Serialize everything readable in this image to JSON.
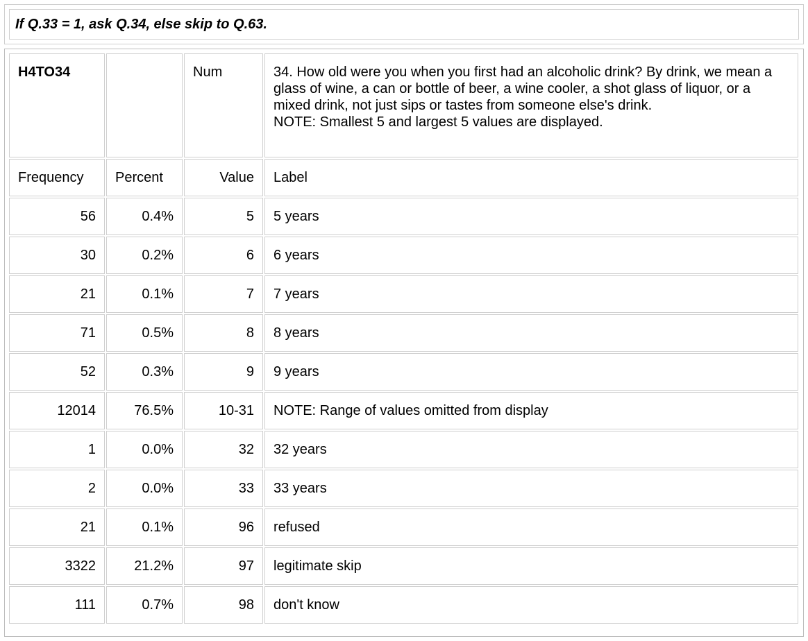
{
  "skip_instruction": "If Q.33 = 1, ask Q.34, else skip to Q.63.",
  "variable": {
    "name": "H4TO34",
    "type": "Num",
    "question": "34. How old were you when you first had an alcoholic drink? By drink, we mean a glass of wine, a can or bottle of beer, a wine cooler, a shot glass of liquor, or a mixed drink, not just sips or tastes from someone else's drink.",
    "note": "NOTE: Smallest 5 and largest 5 values are displayed."
  },
  "headers": {
    "frequency": "Frequency",
    "percent": "Percent",
    "value": "Value",
    "label": "Label"
  },
  "rows": [
    {
      "frequency": "56",
      "percent": "0.4%",
      "value": "5",
      "label": "5 years"
    },
    {
      "frequency": "30",
      "percent": "0.2%",
      "value": "6",
      "label": "6 years"
    },
    {
      "frequency": "21",
      "percent": "0.1%",
      "value": "7",
      "label": "7 years"
    },
    {
      "frequency": "71",
      "percent": "0.5%",
      "value": "8",
      "label": "8 years"
    },
    {
      "frequency": "52",
      "percent": "0.3%",
      "value": "9",
      "label": "9 years"
    },
    {
      "frequency": "12014",
      "percent": "76.5%",
      "value": "10-31",
      "label": "NOTE: Range of values omitted from display"
    },
    {
      "frequency": "1",
      "percent": "0.0%",
      "value": "32",
      "label": "32 years"
    },
    {
      "frequency": "2",
      "percent": "0.0%",
      "value": "33",
      "label": "33 years"
    },
    {
      "frequency": "21",
      "percent": "0.1%",
      "value": "96",
      "label": "refused"
    },
    {
      "frequency": "3322",
      "percent": "21.2%",
      "value": "97",
      "label": "legitimate skip"
    },
    {
      "frequency": "111",
      "percent": "0.7%",
      "value": "98",
      "label": "don't know"
    }
  ]
}
